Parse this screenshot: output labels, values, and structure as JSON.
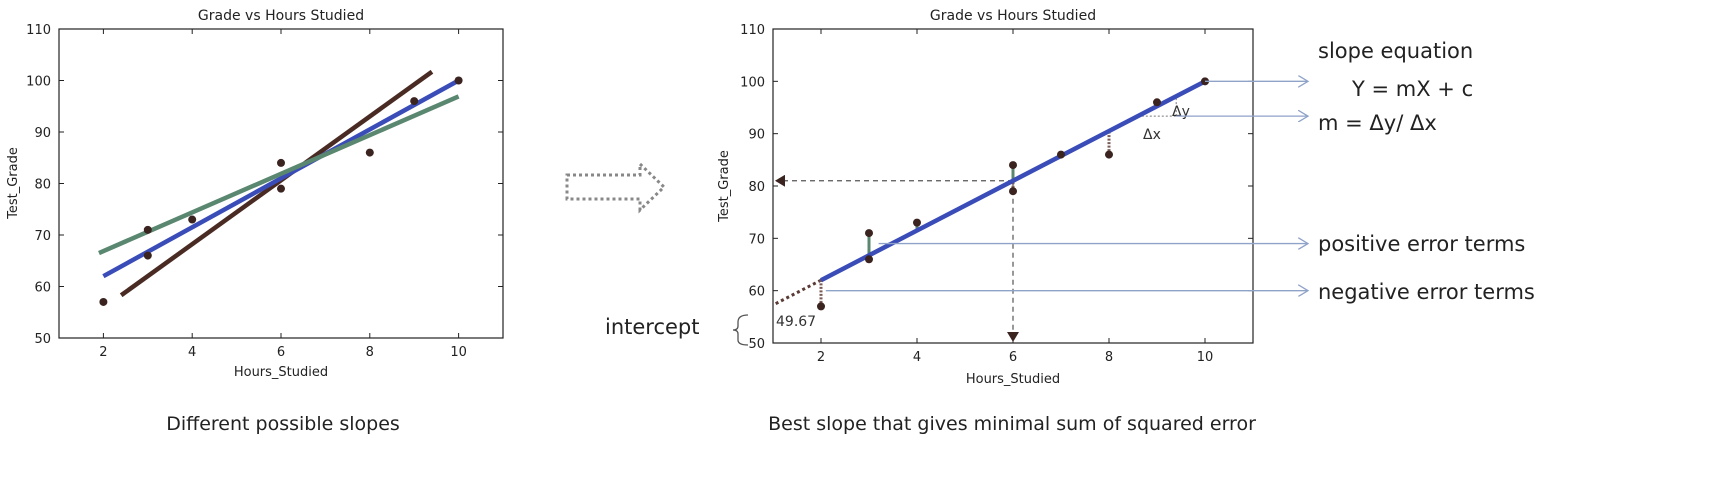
{
  "chart_data": [
    {
      "type": "scatter",
      "title": "Grade vs Hours Studied",
      "xlabel": "Hours_Studied",
      "ylabel": "Test_Grade",
      "xlim": [
        1,
        11
      ],
      "ylim": [
        50,
        110
      ],
      "xticks": [
        "2",
        "4",
        "6",
        "8",
        "10"
      ],
      "yticks": [
        "50",
        "60",
        "70",
        "80",
        "90",
        "100",
        "110"
      ],
      "points": [
        [
          2,
          57
        ],
        [
          3,
          66
        ],
        [
          3,
          71
        ],
        [
          4,
          73
        ],
        [
          6,
          79
        ],
        [
          6,
          84
        ],
        [
          8,
          86
        ],
        [
          9,
          96
        ],
        [
          10,
          100
        ]
      ],
      "lines": [
        {
          "color": "#4a2b24",
          "x": [
            2.4,
            9.4
          ],
          "y": [
            58.3,
            101.7
          ]
        },
        {
          "color": "#3a4cb8",
          "x": [
            2,
            10
          ],
          "y": [
            62,
            100
          ]
        },
        {
          "color": "#5a8770",
          "x": [
            1.9,
            10
          ],
          "y": [
            66.5,
            96.9
          ]
        }
      ],
      "caption": "Different possible slopes"
    },
    {
      "type": "scatter",
      "title": "Grade vs Hours Studied",
      "xlabel": "Hours_Studied",
      "ylabel": "Test_Grade",
      "xlim": [
        1,
        11
      ],
      "ylim": [
        50,
        110
      ],
      "xticks": [
        "2",
        "4",
        "6",
        "8",
        "10"
      ],
      "yticks": [
        "50",
        "60",
        "70",
        "80",
        "90",
        "100",
        "110"
      ],
      "points": [
        [
          2,
          57
        ],
        [
          3,
          66
        ],
        [
          3,
          71
        ],
        [
          4,
          73
        ],
        [
          6,
          79
        ],
        [
          6,
          84
        ],
        [
          7,
          86
        ],
        [
          8,
          86
        ],
        [
          9,
          96
        ],
        [
          10,
          100
        ]
      ],
      "fit_line": {
        "color": "#3a4cb8",
        "x": [
          2,
          10
        ],
        "y": [
          62,
          100
        ]
      },
      "intercept_value": "49.67",
      "caption": "Best slope that gives minimal sum of squared error"
    }
  ],
  "annotations": {
    "slope_equation_label": "slope equation",
    "equation": "Y = mX + c",
    "slope_formula": "m = Δy/ Δx",
    "delta_y": "Δy",
    "delta_x": "Δx",
    "positive_errors": "positive error terms",
    "negative_errors": "negative error terms",
    "intercept_label": "intercept"
  },
  "colors": {
    "accent_blue": "#3a4cb8",
    "accent_green": "#5a8770",
    "accent_brown": "#4a2b24",
    "annotation_line": "#8fa2c8",
    "point": "#3b2320"
  }
}
